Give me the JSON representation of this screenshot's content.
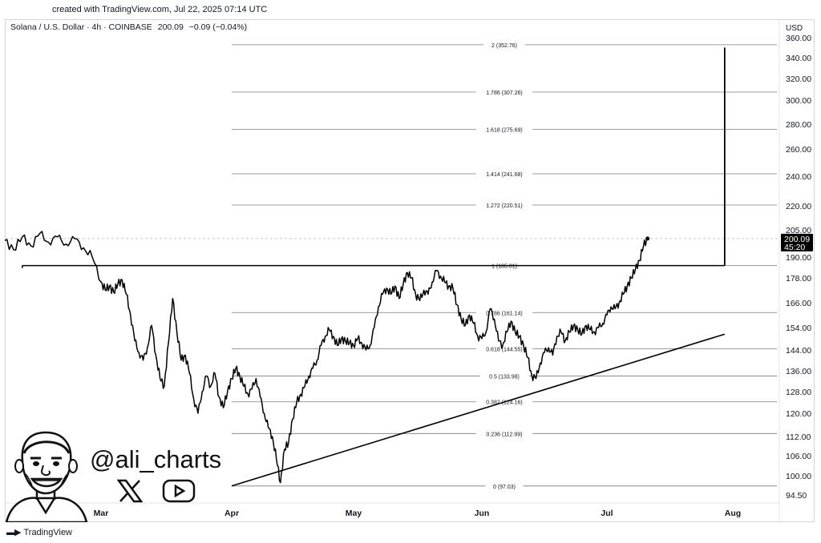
{
  "header": {
    "created": "created with TradingView.com, Jul 22, 2025 07:14 UTC"
  },
  "symbol_line": {
    "name": "Solana / U.S. Dollar · 4h · COINBASE",
    "price": "200.09",
    "change": "−0.09 (−0.04%)"
  },
  "watermark": {
    "handle": "@ali_charts"
  },
  "footer": {
    "brand": "TradingView"
  },
  "colors": {
    "line": "#000000",
    "grid": "#e0e3eb",
    "axis_text": "#131722",
    "badge_bg": "#000000",
    "badge_text": "#ffffff"
  },
  "chart_data": {
    "type": "line",
    "currency_label": "USD",
    "y_ticks": [
      {
        "label": "360.00",
        "v": 360
      },
      {
        "label": "340.00",
        "v": 340
      },
      {
        "label": "320.00",
        "v": 320
      },
      {
        "label": "300.00",
        "v": 300
      },
      {
        "label": "280.00",
        "v": 280
      },
      {
        "label": "260.00",
        "v": 260
      },
      {
        "label": "240.00",
        "v": 240
      },
      {
        "label": "220.00",
        "v": 220
      },
      {
        "label": "205.00",
        "v": 205
      },
      {
        "label": "190.00",
        "v": 190
      },
      {
        "label": "178.00",
        "v": 178
      },
      {
        "label": "166.00",
        "v": 166
      },
      {
        "label": "154.00",
        "v": 154
      },
      {
        "label": "144.00",
        "v": 144
      },
      {
        "label": "136.00",
        "v": 136
      },
      {
        "label": "128.00",
        "v": 128
      },
      {
        "label": "120.00",
        "v": 120
      },
      {
        "label": "112.00",
        "v": 112
      },
      {
        "label": "106.00",
        "v": 106
      },
      {
        "label": "100.00",
        "v": 100
      },
      {
        "label": "94.50",
        "v": 94.5
      }
    ],
    "x_labels": [
      {
        "label": "Mar",
        "day": 0
      },
      {
        "label": "Apr",
        "day": 31
      },
      {
        "label": "May",
        "day": 61
      },
      {
        "label": "Jun",
        "day": 92
      },
      {
        "label": "Jul",
        "day": 122
      },
      {
        "label": "Aug",
        "day": 153
      }
    ],
    "x_range_days": [
      -11,
      154
    ],
    "current_price": {
      "value": "200.09",
      "countdown": "45:20"
    },
    "fib_levels": [
      {
        "ratio": "0",
        "price": 97.03,
        "label": "0 (97.03)"
      },
      {
        "ratio": "0.236",
        "price": 112.99,
        "label": "0.236 (112.99)"
      },
      {
        "ratio": "0.382",
        "price": 124.16,
        "label": "0.382 (124.16)"
      },
      {
        "ratio": "0.5",
        "price": 133.98,
        "label": "0.5 (133.98)"
      },
      {
        "ratio": "0.618",
        "price": 144.55,
        "label": "0.618 (144.55)"
      },
      {
        "ratio": "0.786",
        "price": 161.14,
        "label": "0.786 (161.14)"
      },
      {
        "ratio": "1",
        "price": 185.01,
        "label": "1 (185.01)"
      },
      {
        "ratio": "1.272",
        "price": 220.51,
        "label": "1.272 (220.51)"
      },
      {
        "ratio": "1.414",
        "price": 241.68,
        "label": "1.414 (241.68)"
      },
      {
        "ratio": "1.618",
        "price": 275.69,
        "label": "1.618 (275.69)"
      },
      {
        "ratio": "1.786",
        "price": 307.26,
        "label": "1.786 (307.26)"
      },
      {
        "ratio": "2",
        "price": 352.76,
        "label": "2 (352.76)"
      }
    ],
    "fib_x_range_days": [
      31,
      153
    ],
    "trendline": {
      "start": {
        "day": 31,
        "price": 97.03
      },
      "end": {
        "day": 151,
        "price": 151
      }
    },
    "breakout_line": {
      "start": {
        "day": -9,
        "price": 185
      },
      "end": {
        "day": 151,
        "price": 185
      }
    },
    "target_line": {
      "day": 151,
      "from": 185,
      "to": 350
    },
    "series": [
      {
        "values": [
          [
            -11,
            199
          ],
          [
            -10,
            194
          ],
          [
            -9,
            201
          ],
          [
            -8,
            196
          ],
          [
            -7,
            203
          ],
          [
            -6,
            198
          ],
          [
            -5,
            201
          ],
          [
            -4,
            197
          ],
          [
            -3,
            200
          ],
          [
            -2,
            195
          ],
          [
            -1,
            190
          ],
          [
            0,
            176
          ],
          [
            1,
            172
          ],
          [
            2,
            174
          ],
          [
            3,
            171
          ],
          [
            4,
            175
          ],
          [
            5,
            177
          ],
          [
            6,
            170
          ],
          [
            7,
            160
          ],
          [
            8,
            148
          ],
          [
            9,
            143
          ],
          [
            10,
            140
          ],
          [
            11,
            145
          ],
          [
            12,
            155
          ],
          [
            13,
            142
          ],
          [
            14,
            133
          ],
          [
            15,
            130
          ],
          [
            16,
            147
          ],
          [
            17,
            168
          ],
          [
            18,
            152
          ],
          [
            19,
            140
          ],
          [
            20,
            142
          ],
          [
            21,
            135
          ],
          [
            22,
            125
          ],
          [
            23,
            120
          ],
          [
            24,
            128
          ],
          [
            25,
            134
          ],
          [
            26,
            130
          ],
          [
            27,
            135
          ],
          [
            28,
            126
          ],
          [
            29,
            122
          ],
          [
            30,
            128
          ],
          [
            31,
            133
          ],
          [
            32,
            137
          ],
          [
            33,
            134
          ],
          [
            34,
            130
          ],
          [
            35,
            127
          ],
          [
            36,
            129
          ],
          [
            37,
            133
          ],
          [
            38,
            126
          ],
          [
            39,
            120
          ],
          [
            40,
            115
          ],
          [
            41,
            112
          ],
          [
            42,
            105
          ],
          [
            43,
            98
          ],
          [
            44,
            108
          ],
          [
            45,
            110
          ],
          [
            46,
            118
          ],
          [
            47,
            124
          ],
          [
            48,
            127
          ],
          [
            49,
            130
          ],
          [
            50,
            134
          ],
          [
            51,
            137
          ],
          [
            52,
            140
          ],
          [
            53,
            146
          ],
          [
            54,
            150
          ],
          [
            55,
            153
          ],
          [
            56,
            150
          ],
          [
            57,
            146
          ],
          [
            58,
            149
          ],
          [
            59,
            148
          ],
          [
            60,
            147
          ],
          [
            61,
            146
          ],
          [
            62,
            149
          ],
          [
            63,
            147
          ],
          [
            64,
            144
          ],
          [
            65,
            146
          ],
          [
            66,
            154
          ],
          [
            67,
            164
          ],
          [
            68,
            170
          ],
          [
            69,
            173
          ],
          [
            70,
            170
          ],
          [
            71,
            174
          ],
          [
            72,
            168
          ],
          [
            73,
            175
          ],
          [
            74,
            181
          ],
          [
            75,
            178
          ],
          [
            76,
            170
          ],
          [
            77,
            167
          ],
          [
            78,
            172
          ],
          [
            79,
            170
          ],
          [
            80,
            176
          ],
          [
            81,
            182
          ],
          [
            82,
            179
          ],
          [
            83,
            176
          ],
          [
            84,
            174
          ],
          [
            85,
            173
          ],
          [
            86,
            165
          ],
          [
            87,
            158
          ],
          [
            88,
            155
          ],
          [
            89,
            160
          ],
          [
            90,
            156
          ],
          [
            91,
            150
          ],
          [
            92,
            149
          ],
          [
            93,
            152
          ],
          [
            94,
            163
          ],
          [
            95,
            158
          ],
          [
            96,
            148
          ],
          [
            97,
            146
          ],
          [
            98,
            152
          ],
          [
            99,
            157
          ],
          [
            100,
            152
          ],
          [
            101,
            150
          ],
          [
            102,
            146
          ],
          [
            103,
            141
          ],
          [
            104,
            134
          ],
          [
            105,
            133
          ],
          [
            106,
            139
          ],
          [
            107,
            143
          ],
          [
            108,
            145
          ],
          [
            109,
            142
          ],
          [
            110,
            150
          ],
          [
            111,
            152
          ],
          [
            112,
            148
          ],
          [
            113,
            152
          ],
          [
            114,
            155
          ],
          [
            115,
            153
          ],
          [
            116,
            151
          ],
          [
            117,
            155
          ],
          [
            118,
            153
          ],
          [
            119,
            152
          ],
          [
            120,
            154
          ],
          [
            121,
            156
          ],
          [
            122,
            160
          ],
          [
            123,
            164
          ],
          [
            124,
            163
          ],
          [
            125,
            166
          ],
          [
            126,
            170
          ],
          [
            127,
            174
          ],
          [
            128,
            178
          ],
          [
            129,
            183
          ],
          [
            130,
            188
          ],
          [
            131,
            196
          ],
          [
            132,
            200.09
          ]
        ]
      }
    ]
  }
}
